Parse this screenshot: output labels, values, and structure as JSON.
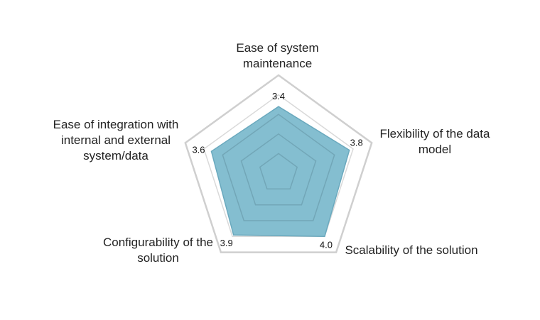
{
  "chart_data": {
    "type": "radar",
    "categories": [
      "Ease of system maintenance",
      "Flexibility of the data model",
      "Scalability of the solution",
      "Configurability of the solution",
      "Ease of integration with internal and external system/data"
    ],
    "values": [
      3.4,
      3.8,
      4.0,
      3.9,
      3.6
    ],
    "data_labels": [
      "3.4",
      "3.8",
      "4.0",
      "3.9",
      "3.6"
    ],
    "rlim": [
      0,
      5
    ],
    "grid": true,
    "legend": "none",
    "colors": {
      "fill": "#7ab8cc",
      "stroke": "#6aa9be",
      "grid": "#d9d9d9",
      "outer_grid": "#cfcfcf"
    }
  }
}
